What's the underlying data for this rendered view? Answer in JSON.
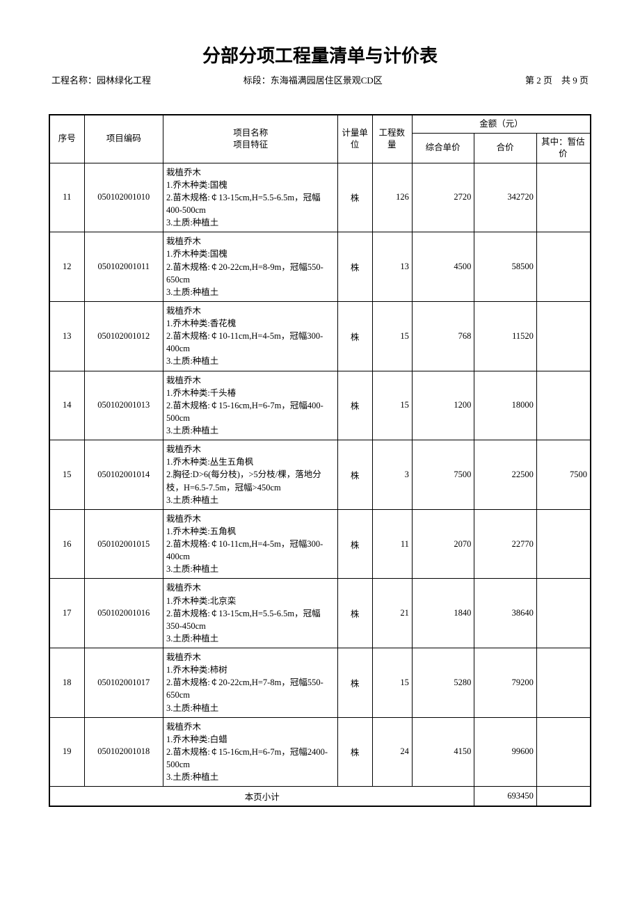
{
  "title": "分部分项工程量清单与计价表",
  "header": {
    "project_label": "工程名称：",
    "project_name": "园林绿化工程",
    "section_label": "标段：",
    "section_name": "东海福满园居住区景观CD区",
    "page_info": "第 2 页　共 9 页"
  },
  "columns": {
    "seq": "序号",
    "code": "项目编码",
    "desc": "项目名称\n项目特征",
    "unit": "计量单位",
    "qty": "工程数量",
    "amount_group": "金额（元）",
    "unit_price": "综合单价",
    "total_price": "合价",
    "temp_price": "其中：暂估价"
  },
  "rows": [
    {
      "seq": "11",
      "code": "050102001010",
      "desc": "栽植乔木\n1.乔木种类:国槐\n2.苗木规格:￠13-15cm,H=5.5-6.5m，冠幅400-500cm\n3.土质:种植土",
      "unit": "株",
      "qty": "126",
      "unit_price": "2720",
      "total_price": "342720",
      "temp_price": ""
    },
    {
      "seq": "12",
      "code": "050102001011",
      "desc": "栽植乔木\n1.乔木种类:国槐\n2.苗木规格:￠20-22cm,H=8-9m，冠幅550-650cm\n3.土质:种植土",
      "unit": "株",
      "qty": "13",
      "unit_price": "4500",
      "total_price": "58500",
      "temp_price": ""
    },
    {
      "seq": "13",
      "code": "050102001012",
      "desc": "栽植乔木\n1.乔木种类:香花槐\n2.苗木规格:￠10-11cm,H=4-5m，冠幅300-400cm\n3.土质:种植土",
      "unit": "株",
      "qty": "15",
      "unit_price": "768",
      "total_price": "11520",
      "temp_price": ""
    },
    {
      "seq": "14",
      "code": "050102001013",
      "desc": "栽植乔木\n1.乔木种类:千头椿\n2.苗木规格:￠15-16cm,H=6-7m，冠幅400-500cm\n3.土质:种植土",
      "unit": "株",
      "qty": "15",
      "unit_price": "1200",
      "total_price": "18000",
      "temp_price": ""
    },
    {
      "seq": "15",
      "code": "050102001014",
      "desc": "栽植乔木\n1.乔木种类:丛生五角枫\n2.胸径:D>6(每分枝)，>5分枝/棵，落地分枝，H=6.5-7.5m，冠幅>450cm\n3.土质:种植土",
      "unit": "株",
      "qty": "3",
      "unit_price": "7500",
      "total_price": "22500",
      "temp_price": "7500"
    },
    {
      "seq": "16",
      "code": "050102001015",
      "desc": "栽植乔木\n1.乔木种类:五角枫\n2.苗木规格:￠10-11cm,H=4-5m，冠幅300-400cm\n3.土质:种植土",
      "unit": "株",
      "qty": "11",
      "unit_price": "2070",
      "total_price": "22770",
      "temp_price": ""
    },
    {
      "seq": "17",
      "code": "050102001016",
      "desc": "栽植乔木\n1.乔木种类:北京栾\n2.苗木规格:￠13-15cm,H=5.5-6.5m，冠幅350-450cm\n3.土质:种植土",
      "unit": "株",
      "qty": "21",
      "unit_price": "1840",
      "total_price": "38640",
      "temp_price": ""
    },
    {
      "seq": "18",
      "code": "050102001017",
      "desc": "栽植乔木\n1.乔木种类:柿树\n2.苗木规格:￠20-22cm,H=7-8m，冠幅550-650cm\n3.土质:种植土",
      "unit": "株",
      "qty": "15",
      "unit_price": "5280",
      "total_price": "79200",
      "temp_price": ""
    },
    {
      "seq": "19",
      "code": "050102001018",
      "desc": "栽植乔木\n1.乔木种类:白蜡\n2.苗木规格:￠15-16cm,H=6-7m，冠幅2400-500cm\n3.土质:种植土",
      "unit": "株",
      "qty": "24",
      "unit_price": "4150",
      "total_price": "99600",
      "temp_price": ""
    }
  ],
  "subtotal": {
    "label": "本页小计",
    "value": "693450"
  }
}
